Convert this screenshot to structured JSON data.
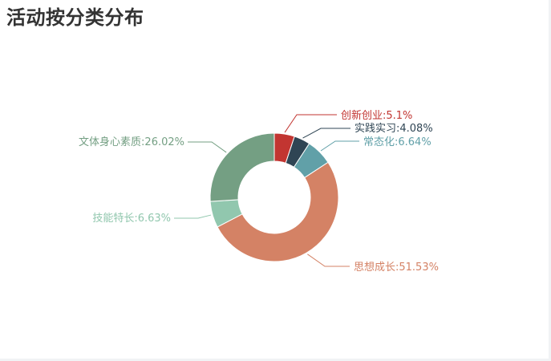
{
  "chart_data": {
    "type": "pie",
    "variant": "donut",
    "title": "活动按分类分布",
    "categories": [
      "创新创业",
      "实践实习",
      "常态化",
      "思想成长",
      "技能特长",
      "文体身心素质"
    ],
    "values": [
      5.1,
      4.08,
      6.64,
      51.53,
      6.63,
      26.02
    ],
    "unit": "%",
    "labels": [
      "创新创业:5.1%",
      "实践实习:4.08%",
      "常态化:6.64%",
      "思想成长:51.53%",
      "技能特长:6.63%",
      "文体身心素质:26.02%"
    ],
    "colors": [
      "#c23531",
      "#2f4554",
      "#61a0a8",
      "#d48265",
      "#91c7ae",
      "#749f83"
    ],
    "legend": "none",
    "label_position": "outside"
  }
}
